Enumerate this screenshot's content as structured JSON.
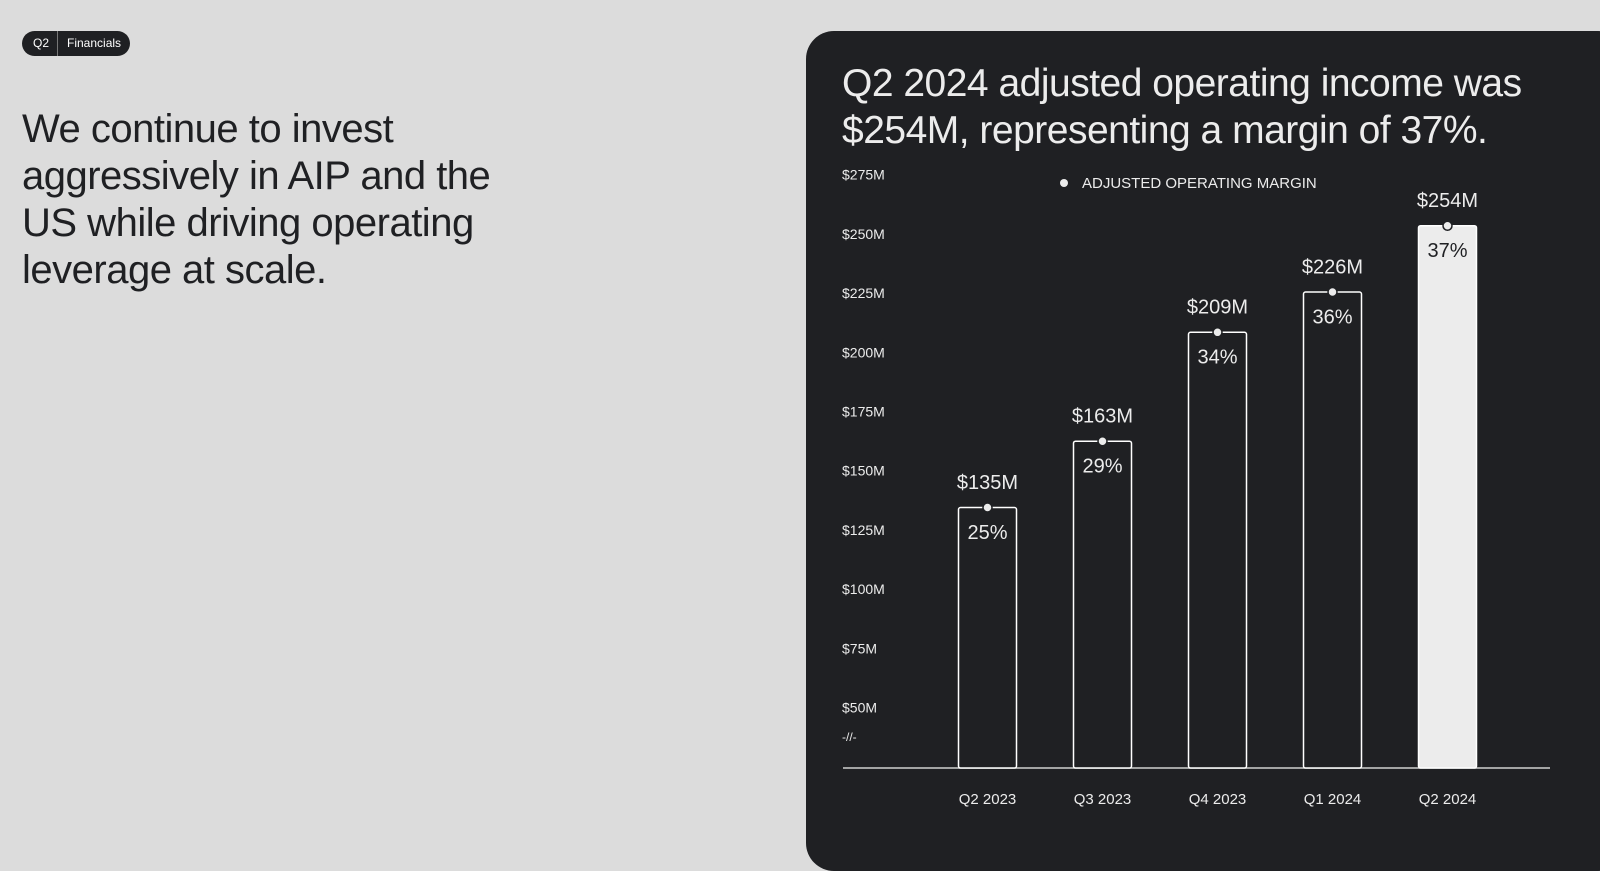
{
  "tag": {
    "section": "Q2",
    "topic": "Financials"
  },
  "headline": "We continue to invest aggressively in AIP and the US while driving operating leverage at scale.",
  "chart_data": {
    "type": "bar",
    "title": "Q2 2024 adjusted operating income was $254M, representing a margin of 37%.",
    "categories": [
      "Q2 2023",
      "Q3 2023",
      "Q4 2023",
      "Q1 2024",
      "Q2 2024"
    ],
    "values": [
      135,
      163,
      209,
      226,
      254
    ],
    "value_labels": [
      "$135M",
      "$163M",
      "$209M",
      "$226M",
      "$254M"
    ],
    "color": "#ffffff",
    "bar_fills": [
      "#1f2023",
      "#1f2023",
      "#1f2023",
      "#1f2023",
      "#ececec"
    ],
    "margin": {
      "name": "ADJUSTED OPERATING MARGIN",
      "values": [
        25,
        29,
        34,
        36,
        37
      ],
      "value_labels": [
        "25%",
        "29%",
        "34%",
        "36%",
        "37%"
      ]
    },
    "ylim": [
      25,
      275
    ],
    "yticks": [
      {
        "value": 50,
        "label": "$50M"
      },
      {
        "value": 75,
        "label": "$75M"
      },
      {
        "value": 100,
        "label": "$100M"
      },
      {
        "value": 125,
        "label": "$125M"
      },
      {
        "value": 150,
        "label": "$150M"
      },
      {
        "value": 175,
        "label": "$175M"
      },
      {
        "value": 200,
        "label": "$200M"
      },
      {
        "value": 225,
        "label": "$225M"
      },
      {
        "value": 250,
        "label": "$250M"
      },
      {
        "value": 275,
        "label": "$275M"
      }
    ],
    "axis_break": "-//-",
    "grid": false
  }
}
